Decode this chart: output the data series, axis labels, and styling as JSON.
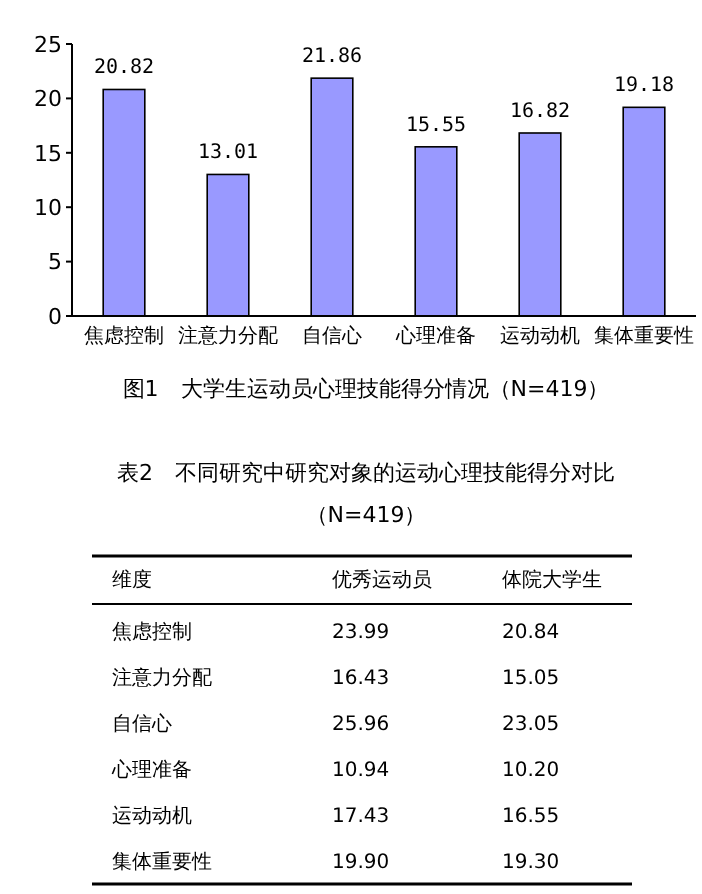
{
  "chart_data": [
    {
      "type": "bar",
      "title": "图1　大学生运动员心理技能得分情况（N=419）",
      "categories": [
        "焦虑控制",
        "注意力分配",
        "自信心",
        "心理准备",
        "运动动机",
        "集体重要性"
      ],
      "values": [
        20.82,
        13.01,
        21.86,
        15.55,
        16.82,
        19.18
      ],
      "color": "#9999ff",
      "ylim": [
        0,
        25
      ],
      "yticks": [
        0,
        5,
        10,
        15,
        20,
        25
      ],
      "data_labels": true
    },
    {
      "type": "other",
      "title": "表2　不同研究中研究对象的运动心理技能得分对比",
      "subtitle": "（N=419）",
      "xlabel": "维度",
      "categories": [
        "焦虑控制",
        "注意力分配",
        "自信心",
        "心理准备",
        "运动动机",
        "集体重要性"
      ],
      "series": [
        {
          "name": "优秀运动员",
          "values": [
            23.99,
            16.43,
            25.96,
            10.94,
            17.43,
            19.9
          ],
          "value_labels": [
            "23.99",
            "16.43",
            "25.96",
            "10.94",
            "17.43",
            "19.90"
          ]
        },
        {
          "name": "体院大学生",
          "values": [
            20.84,
            15.05,
            23.05,
            10.2,
            16.55,
            19.3
          ],
          "value_labels": [
            "20.84",
            "15.05",
            "23.05",
            "10.20",
            "16.55",
            "19.30"
          ]
        }
      ]
    }
  ]
}
